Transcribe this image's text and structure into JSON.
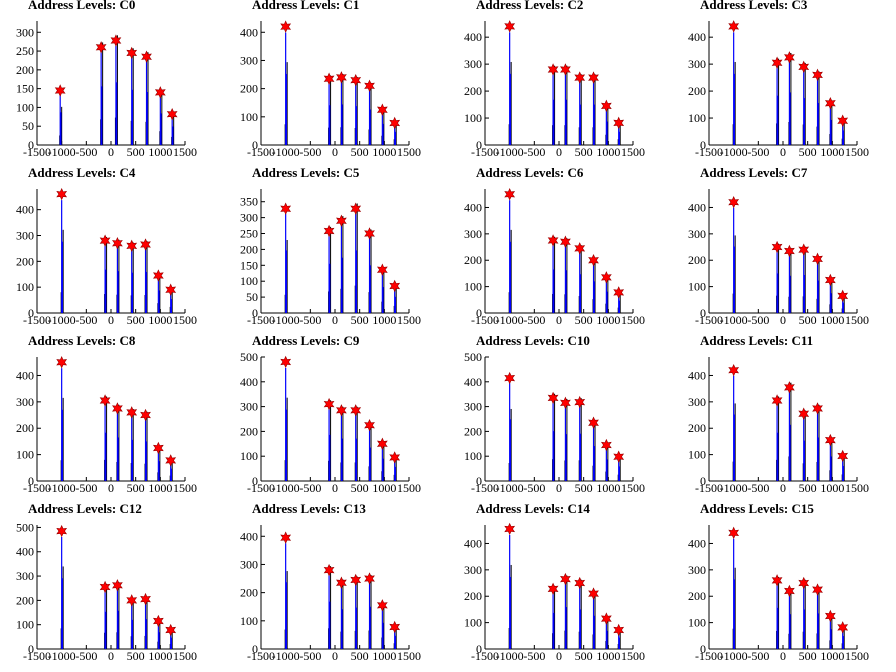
{
  "xticks": [
    -1500,
    -1000,
    -500,
    0,
    500,
    1000,
    1500
  ],
  "xlim": [
    -1500,
    1500
  ],
  "colors": {
    "histogram": "#0000ff",
    "reference": "#000000",
    "marker": "#ff0000"
  },
  "chart_data": [
    {
      "type": "bar",
      "title": "Address Levels: C0",
      "ylim": [
        0,
        330
      ],
      "yticks": [
        0,
        50,
        100,
        150,
        200,
        250,
        300
      ],
      "peaks_x": [
        -1030,
        -200,
        100,
        420,
        720,
        1000,
        1240
      ],
      "peaks_y": [
        145,
        260,
        278,
        245,
        235,
        140,
        82
      ]
    },
    {
      "type": "bar",
      "title": "Address Levels: C1",
      "ylim": [
        0,
        440
      ],
      "yticks": [
        0,
        100,
        200,
        300,
        400
      ],
      "peaks_x": [
        -1000,
        -120,
        130,
        420,
        700,
        960,
        1210
      ],
      "peaks_y": [
        420,
        235,
        240,
        230,
        210,
        125,
        78
      ]
    },
    {
      "type": "bar",
      "title": "Address Levels: C2",
      "ylim": [
        0,
        460
      ],
      "yticks": [
        0,
        100,
        200,
        300,
        400
      ],
      "peaks_x": [
        -1000,
        -120,
        130,
        420,
        700,
        960,
        1210
      ],
      "peaks_y": [
        440,
        280,
        280,
        250,
        250,
        145,
        82
      ]
    },
    {
      "type": "bar",
      "title": "Address Levels: C3",
      "ylim": [
        0,
        460
      ],
      "yticks": [
        0,
        100,
        200,
        300,
        400
      ],
      "peaks_x": [
        -1000,
        -120,
        130,
        420,
        700,
        960,
        1210
      ],
      "peaks_y": [
        440,
        305,
        325,
        290,
        260,
        155,
        90
      ]
    },
    {
      "type": "bar",
      "title": "Address Levels: C4",
      "ylim": [
        0,
        480
      ],
      "yticks": [
        0,
        100,
        200,
        300,
        400
      ],
      "peaks_x": [
        -1000,
        -120,
        130,
        420,
        700,
        960,
        1210
      ],
      "peaks_y": [
        460,
        280,
        270,
        260,
        265,
        145,
        90
      ]
    },
    {
      "type": "bar",
      "title": "Address Levels: C5",
      "ylim": [
        0,
        390
      ],
      "yticks": [
        0,
        50,
        100,
        150,
        200,
        250,
        300,
        350
      ],
      "peaks_x": [
        -1000,
        -120,
        130,
        420,
        700,
        960,
        1210
      ],
      "peaks_y": [
        328,
        258,
        290,
        328,
        250,
        136,
        85
      ]
    },
    {
      "type": "bar",
      "title": "Address Levels: C6",
      "ylim": [
        0,
        470
      ],
      "yticks": [
        0,
        100,
        200,
        300,
        400
      ],
      "peaks_x": [
        -1000,
        -120,
        130,
        420,
        700,
        960,
        1210
      ],
      "peaks_y": [
        450,
        275,
        270,
        245,
        200,
        135,
        78
      ]
    },
    {
      "type": "bar",
      "title": "Address Levels: C7",
      "ylim": [
        0,
        470
      ],
      "yticks": [
        0,
        100,
        200,
        300,
        400
      ],
      "peaks_x": [
        -1000,
        -120,
        130,
        420,
        700,
        960,
        1210
      ],
      "peaks_y": [
        420,
        250,
        235,
        240,
        205,
        125,
        65
      ]
    },
    {
      "type": "bar",
      "title": "Address Levels: C8",
      "ylim": [
        0,
        470
      ],
      "yticks": [
        0,
        100,
        200,
        300,
        400
      ],
      "peaks_x": [
        -1000,
        -120,
        130,
        420,
        700,
        960,
        1210
      ],
      "peaks_y": [
        450,
        305,
        275,
        260,
        250,
        125,
        78
      ]
    },
    {
      "type": "bar",
      "title": "Address Levels: C9",
      "ylim": [
        0,
        500
      ],
      "yticks": [
        0,
        100,
        200,
        300,
        400,
        500
      ],
      "peaks_x": [
        -1000,
        -120,
        130,
        420,
        700,
        960,
        1210
      ],
      "peaks_y": [
        480,
        310,
        285,
        285,
        225,
        150,
        95
      ]
    },
    {
      "type": "bar",
      "title": "Address Levels: C10",
      "ylim": [
        0,
        500
      ],
      "yticks": [
        0,
        100,
        200,
        300,
        400,
        500
      ],
      "peaks_x": [
        -1000,
        -120,
        130,
        420,
        700,
        960,
        1210
      ],
      "peaks_y": [
        415,
        335,
        315,
        318,
        235,
        145,
        98
      ]
    },
    {
      "type": "bar",
      "title": "Address Levels: C11",
      "ylim": [
        0,
        470
      ],
      "yticks": [
        0,
        100,
        200,
        300,
        400
      ],
      "peaks_x": [
        -1000,
        -120,
        130,
        420,
        700,
        960,
        1210
      ],
      "peaks_y": [
        420,
        305,
        355,
        255,
        275,
        155,
        95
      ]
    },
    {
      "type": "bar",
      "title": "Address Levels: C12",
      "ylim": [
        0,
        510
      ],
      "yticks": [
        0,
        100,
        200,
        300,
        400,
        500
      ],
      "peaks_x": [
        -1000,
        -120,
        130,
        420,
        700,
        960,
        1210
      ],
      "peaks_y": [
        485,
        255,
        262,
        200,
        205,
        115,
        78
      ]
    },
    {
      "type": "bar",
      "title": "Address Levels: C13",
      "ylim": [
        0,
        440
      ],
      "yticks": [
        0,
        100,
        200,
        300,
        400
      ],
      "peaks_x": [
        -1000,
        -120,
        130,
        420,
        700,
        960,
        1210
      ],
      "peaks_y": [
        395,
        280,
        235,
        245,
        250,
        155,
        78
      ]
    },
    {
      "type": "bar",
      "title": "Address Levels: C14",
      "ylim": [
        0,
        470
      ],
      "yticks": [
        0,
        100,
        200,
        300,
        400
      ],
      "peaks_x": [
        -1000,
        -120,
        130,
        420,
        700,
        960,
        1210
      ],
      "peaks_y": [
        455,
        228,
        265,
        250,
        210,
        115,
        72
      ]
    },
    {
      "type": "bar",
      "title": "Address Levels: C15",
      "ylim": [
        0,
        470
      ],
      "yticks": [
        0,
        100,
        200,
        300,
        400
      ],
      "peaks_x": [
        -1000,
        -120,
        130,
        420,
        700,
        960,
        1210
      ],
      "peaks_y": [
        440,
        260,
        220,
        250,
        225,
        125,
        82
      ]
    }
  ]
}
